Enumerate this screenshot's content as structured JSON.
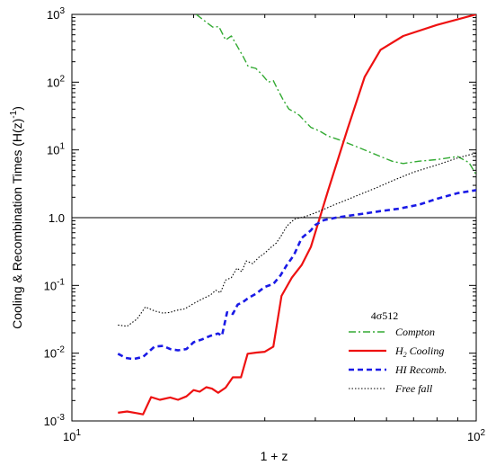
{
  "chart_data": {
    "type": "line",
    "xscale": "log",
    "yscale": "log",
    "xlim": [
      10,
      100
    ],
    "ylim": [
      0.001,
      1000
    ],
    "xlabel": "1 + z",
    "ylabel": "Cooling & Recombination Times (H(z)",
    "ylabel_sup": "-1",
    "ylabel_close": ")",
    "x_ticks": [
      {
        "v": 10,
        "base": "10",
        "exp": "1"
      },
      {
        "v": 100,
        "base": "10",
        "exp": "2"
      }
    ],
    "y_ticks": [
      {
        "v": 0.001,
        "base": "10",
        "exp": "-3"
      },
      {
        "v": 0.01,
        "base": "10",
        "exp": "-2"
      },
      {
        "v": 0.1,
        "base": "10",
        "exp": "-1"
      },
      {
        "v": 1,
        "text": "1.0"
      },
      {
        "v": 10,
        "base": "10",
        "exp": "1"
      },
      {
        "v": 100,
        "base": "10",
        "exp": "2"
      },
      {
        "v": 1000,
        "base": "10",
        "exp": "3"
      }
    ],
    "reference_line": 1.0,
    "legend": {
      "title": "4σ512",
      "position": "bottom-right"
    },
    "series": [
      {
        "name": "Compton",
        "color": "#33aa33",
        "style": "dashdot",
        "points": [
          [
            20.3,
            1000
          ],
          [
            21.3,
            800
          ],
          [
            22.3,
            650
          ],
          [
            23.1,
            660
          ],
          [
            24,
            420
          ],
          [
            24.8,
            480
          ],
          [
            25.5,
            360
          ],
          [
            26.5,
            240
          ],
          [
            27.3,
            170
          ],
          [
            28.5,
            160
          ],
          [
            29.5,
            130
          ],
          [
            30.6,
            100
          ],
          [
            31.5,
            105
          ],
          [
            32.4,
            75
          ],
          [
            33.3,
            55
          ],
          [
            34.4,
            40
          ],
          [
            35.6,
            36
          ],
          [
            36.6,
            32
          ],
          [
            37.8,
            26
          ],
          [
            39,
            21.5
          ],
          [
            41,
            19
          ],
          [
            43,
            16
          ],
          [
            46,
            14
          ],
          [
            50,
            11.5
          ],
          [
            54,
            9.5
          ],
          [
            58,
            8
          ],
          [
            62,
            6.8
          ],
          [
            66,
            6.3
          ],
          [
            72,
            6.8
          ],
          [
            80,
            7.2
          ],
          [
            90,
            8
          ],
          [
            96,
            6.5
          ],
          [
            100,
            4.3
          ]
        ]
      },
      {
        "name": "H",
        "name_sub": "2",
        "name_rest": " Cooling",
        "color": "#ee1111",
        "style": "solid",
        "points": [
          [
            13,
            0.00132
          ],
          [
            13.7,
            0.00138
          ],
          [
            14.5,
            0.0013
          ],
          [
            15,
            0.00125
          ],
          [
            15.7,
            0.00225
          ],
          [
            16.5,
            0.00205
          ],
          [
            17.5,
            0.00222
          ],
          [
            18.3,
            0.00205
          ],
          [
            19.2,
            0.0023
          ],
          [
            20,
            0.00285
          ],
          [
            20.7,
            0.0027
          ],
          [
            21.5,
            0.00315
          ],
          [
            22.2,
            0.003
          ],
          [
            23,
            0.0026
          ],
          [
            24,
            0.0031
          ],
          [
            25,
            0.0044
          ],
          [
            26.2,
            0.0044
          ],
          [
            27.2,
            0.0098
          ],
          [
            28.6,
            0.0102
          ],
          [
            30,
            0.0105
          ],
          [
            31.5,
            0.0125
          ],
          [
            33,
            0.07
          ],
          [
            35,
            0.13
          ],
          [
            37,
            0.2
          ],
          [
            39,
            0.37
          ],
          [
            43,
            2.5
          ],
          [
            48,
            20
          ],
          [
            53,
            120
          ],
          [
            58,
            300
          ],
          [
            66,
            480
          ],
          [
            80,
            700
          ],
          [
            100,
            1000
          ]
        ]
      },
      {
        "name": "HI Recomb.",
        "color": "#1a1ae6",
        "style": "dashed",
        "points": [
          [
            13,
            0.0098
          ],
          [
            13.6,
            0.0085
          ],
          [
            14.2,
            0.0082
          ],
          [
            15,
            0.0088
          ],
          [
            16,
            0.0125
          ],
          [
            16.8,
            0.0128
          ],
          [
            17.5,
            0.0115
          ],
          [
            18.3,
            0.011
          ],
          [
            19.2,
            0.0115
          ],
          [
            20,
            0.0145
          ],
          [
            21,
            0.016
          ],
          [
            22,
            0.018
          ],
          [
            23,
            0.0195
          ],
          [
            23.5,
            0.018
          ],
          [
            24.2,
            0.04
          ],
          [
            25,
            0.038
          ],
          [
            25.7,
            0.052
          ],
          [
            26.5,
            0.057
          ],
          [
            27.3,
            0.065
          ],
          [
            28.5,
            0.075
          ],
          [
            30,
            0.095
          ],
          [
            31.5,
            0.105
          ],
          [
            32.8,
            0.14
          ],
          [
            34,
            0.2
          ],
          [
            35.4,
            0.28
          ],
          [
            37,
            0.5
          ],
          [
            39,
            0.65
          ],
          [
            40,
            0.78
          ],
          [
            42,
            0.92
          ],
          [
            45,
            1.0
          ],
          [
            49,
            1.08
          ],
          [
            53,
            1.15
          ],
          [
            58,
            1.25
          ],
          [
            64,
            1.35
          ],
          [
            72,
            1.55
          ],
          [
            80,
            1.9
          ],
          [
            90,
            2.3
          ],
          [
            100,
            2.55
          ]
        ]
      },
      {
        "name": "Free fall",
        "color": "#000000",
        "style": "dotted",
        "points": [
          [
            13,
            0.026
          ],
          [
            13.7,
            0.025
          ],
          [
            14.5,
            0.032
          ],
          [
            15.2,
            0.048
          ],
          [
            16,
            0.042
          ],
          [
            16.8,
            0.039
          ],
          [
            17.5,
            0.04
          ],
          [
            18.2,
            0.043
          ],
          [
            19,
            0.045
          ],
          [
            20,
            0.054
          ],
          [
            21,
            0.063
          ],
          [
            22,
            0.072
          ],
          [
            22.7,
            0.085
          ],
          [
            23.3,
            0.078
          ],
          [
            24,
            0.12
          ],
          [
            24.8,
            0.13
          ],
          [
            25.6,
            0.18
          ],
          [
            26.3,
            0.16
          ],
          [
            27,
            0.23
          ],
          [
            28,
            0.21
          ],
          [
            29,
            0.26
          ],
          [
            30,
            0.3
          ],
          [
            31,
            0.36
          ],
          [
            32,
            0.42
          ],
          [
            33,
            0.55
          ],
          [
            34,
            0.75
          ],
          [
            35.5,
            0.95
          ],
          [
            38,
            1.05
          ],
          [
            41,
            1.25
          ],
          [
            44,
            1.5
          ],
          [
            48,
            1.85
          ],
          [
            52,
            2.25
          ],
          [
            57,
            2.8
          ],
          [
            62,
            3.5
          ],
          [
            70,
            4.7
          ],
          [
            80,
            6
          ],
          [
            90,
            7.6
          ],
          [
            100,
            9
          ]
        ]
      }
    ]
  }
}
